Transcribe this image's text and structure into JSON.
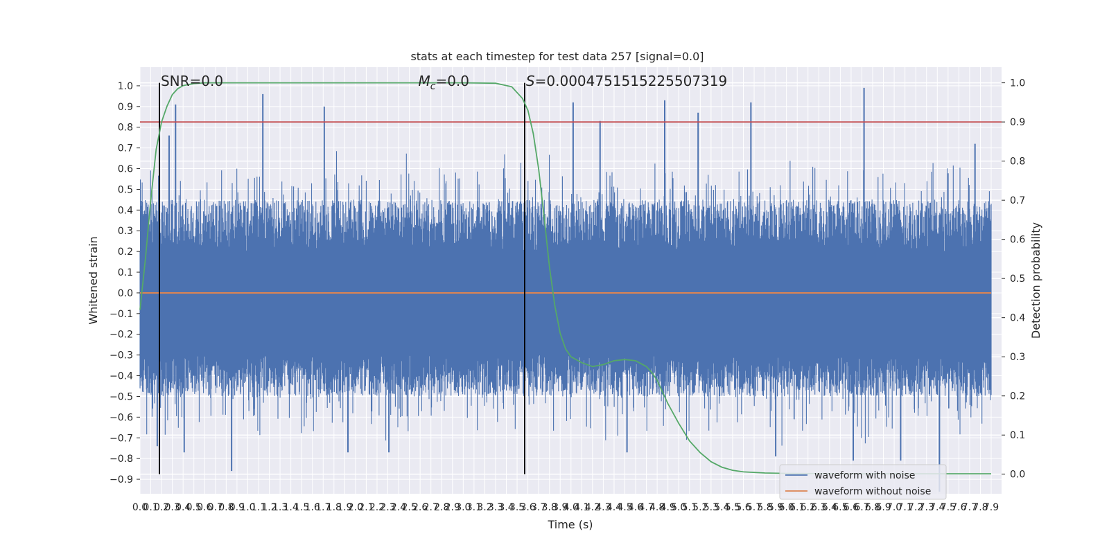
{
  "chart_data": {
    "type": "line",
    "title": "stats at each timestep for test data 257 [signal=0.0]",
    "xlabel": "Time (s)",
    "ylabel": "Whitened strain",
    "y2label": "Detection probability",
    "xlim": [
      0.0,
      7.9
    ],
    "ylim": [
      -0.97,
      1.09
    ],
    "y2lim": [
      -0.05,
      1.04
    ],
    "x_ticks": [
      0.0,
      0.1,
      0.2,
      0.3,
      0.4,
      0.5,
      0.6,
      0.7,
      0.8,
      0.9,
      1.0,
      1.1,
      1.2,
      1.3,
      1.4,
      1.5,
      1.6,
      1.7,
      1.8,
      1.9,
      2.0,
      2.1,
      2.2,
      2.3,
      2.4,
      2.5,
      2.6,
      2.7,
      2.8,
      2.9,
      3.0,
      3.1,
      3.2,
      3.3,
      3.4,
      3.5,
      3.6,
      3.7,
      3.8,
      3.9,
      4.0,
      4.1,
      4.2,
      4.3,
      4.4,
      4.5,
      4.6,
      4.7,
      4.8,
      4.9,
      5.0,
      5.1,
      5.2,
      5.3,
      5.4,
      5.5,
      5.6,
      5.7,
      5.8,
      5.9,
      6.0,
      6.1,
      6.2,
      6.3,
      6.4,
      6.5,
      6.6,
      6.7,
      6.8,
      6.9,
      7.0,
      7.1,
      7.2,
      7.3,
      7.4,
      7.5,
      7.6,
      7.7,
      7.8,
      7.9
    ],
    "y_ticks": [
      -0.9,
      -0.8,
      -0.7,
      -0.6,
      -0.5,
      -0.4,
      -0.3,
      -0.2,
      -0.1,
      0.0,
      0.1,
      0.2,
      0.3,
      0.4,
      0.5,
      0.6,
      0.7,
      0.8,
      0.9,
      1.0
    ],
    "y2_ticks": [
      0.0,
      0.1,
      0.2,
      0.3,
      0.4,
      0.5,
      0.6,
      0.7,
      0.8,
      0.9,
      1.0
    ],
    "grid": true,
    "legend_position": "lower-right",
    "threshold": {
      "axis": "right",
      "value": 0.9,
      "color": "#c44e52"
    },
    "vlines": [
      0.18,
      3.57
    ],
    "annotations": [
      {
        "label": "SNR",
        "value": "=0.0",
        "x": 0.18
      },
      {
        "label": "M",
        "sub": "c",
        "value": "=0.0",
        "x": 2.57
      },
      {
        "label": "S",
        "value": "=0.0004751515225507319",
        "x": 3.57
      }
    ],
    "series": [
      {
        "name": "waveform with noise",
        "axis": "left",
        "color": "#4c72b0",
        "envelope": "noise: upper 0.2–0.5 typical, lower -0.3 to -0.6 typical",
        "spikes_max": [
          [
            0.33,
            0.91
          ],
          [
            1.14,
            0.96
          ],
          [
            1.71,
            0.9
          ],
          [
            4.02,
            0.92
          ],
          [
            4.27,
            0.83
          ],
          [
            4.87,
            0.93
          ],
          [
            5.18,
            0.87
          ],
          [
            5.67,
            0.92
          ],
          [
            6.72,
            0.99
          ],
          [
            7.75,
            0.72
          ],
          [
            0.27,
            0.76
          ]
        ],
        "spikes_min": [
          [
            0.85,
            -0.86
          ],
          [
            0.16,
            -0.74
          ],
          [
            0.41,
            -0.77
          ],
          [
            1.93,
            -0.77
          ],
          [
            2.31,
            -0.77
          ],
          [
            4.52,
            -0.77
          ],
          [
            5.9,
            -0.79
          ],
          [
            6.62,
            -0.81
          ],
          [
            7.06,
            -0.81
          ],
          [
            7.42,
            -0.96
          ]
        ]
      },
      {
        "name": "waveform without noise",
        "axis": "left",
        "color": "#dd8452",
        "x": [
          0.0,
          7.9
        ],
        "y": [
          0.0,
          0.0
        ]
      },
      {
        "axis": "right",
        "color": "#55a868",
        "x": [
          0.0,
          0.05,
          0.1,
          0.15,
          0.2,
          0.25,
          0.3,
          0.35,
          0.4,
          0.5,
          0.6,
          0.8,
          1.0,
          2.0,
          3.0,
          3.3,
          3.45,
          3.55,
          3.6,
          3.65,
          3.7,
          3.75,
          3.8,
          3.85,
          3.9,
          3.95,
          4.0,
          4.1,
          4.2,
          4.3,
          4.4,
          4.5,
          4.6,
          4.7,
          4.75,
          4.8,
          4.85,
          4.9,
          5.0,
          5.1,
          5.2,
          5.3,
          5.4,
          5.5,
          5.6,
          5.8,
          6.0,
          6.5,
          7.0,
          7.5,
          7.9
        ],
        "y": [
          0.42,
          0.55,
          0.7,
          0.83,
          0.9,
          0.94,
          0.97,
          0.985,
          0.993,
          0.998,
          1.0,
          1.0,
          1.0,
          1.0,
          1.0,
          0.999,
          0.99,
          0.96,
          0.93,
          0.87,
          0.78,
          0.66,
          0.53,
          0.43,
          0.36,
          0.32,
          0.3,
          0.285,
          0.275,
          0.28,
          0.29,
          0.293,
          0.29,
          0.275,
          0.26,
          0.24,
          0.21,
          0.18,
          0.13,
          0.085,
          0.055,
          0.032,
          0.018,
          0.01,
          0.006,
          0.003,
          0.002,
          0.001,
          0.001,
          0.001,
          0.001
        ]
      }
    ]
  }
}
